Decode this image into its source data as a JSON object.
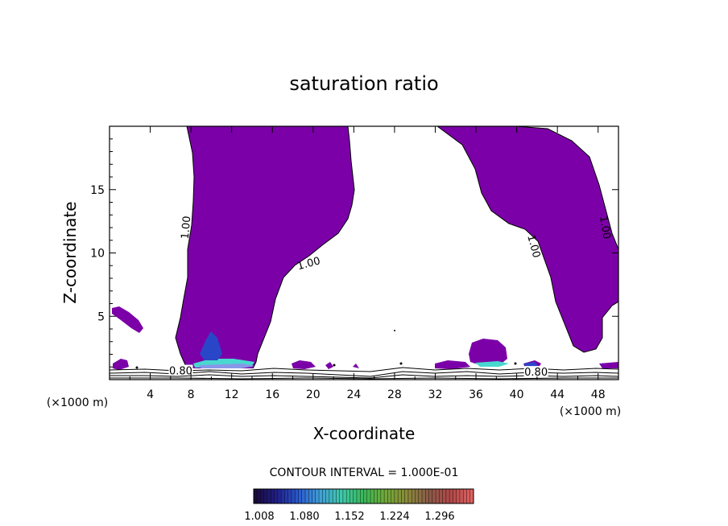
{
  "chart_data": {
    "type": "contour",
    "title": "saturation ratio",
    "xlabel": "X-coordinate",
    "ylabel": "Z-coordinate",
    "x_unit": "(×1000 m)",
    "x_unit_right": "(×1000 m)",
    "xlim": [
      0,
      50
    ],
    "ylim": [
      0,
      20
    ],
    "x_ticks": [
      4,
      8,
      12,
      16,
      20,
      24,
      28,
      32,
      36,
      40,
      44,
      48
    ],
    "y_ticks": [
      5,
      10,
      15
    ],
    "contour_interval_label": "CONTOUR INTERVAL = 1.000E-01",
    "contour_labels": [
      {
        "text": "1.00",
        "x": 7.6,
        "z": 12.0,
        "angle": -85
      },
      {
        "text": "1.00",
        "x": 19.6,
        "z": 9.1,
        "angle": -15
      },
      {
        "text": "1.00",
        "x": 41.6,
        "z": 10.5,
        "angle": 75
      },
      {
        "text": "1.00",
        "x": 48.6,
        "z": 12.0,
        "angle": 80
      },
      {
        "text": "0.80",
        "x": 7.0,
        "z": 0.6,
        "angle": 0
      },
      {
        "text": "0.80",
        "x": 41.9,
        "z": 0.5,
        "angle": 0
      }
    ],
    "colorbar": {
      "ticks": [
        "1.008",
        "1.080",
        "1.152",
        "1.224",
        "1.296"
      ],
      "colors": [
        "#1a0a3c",
        "#20208a",
        "#2a5ad0",
        "#3fa0d8",
        "#40c8a8",
        "#38b858",
        "#70a838",
        "#8a8a38",
        "#8a5a48",
        "#b04848",
        "#e06060"
      ]
    },
    "fill_color": "#7b00a8",
    "grid": false,
    "legend": "none"
  }
}
